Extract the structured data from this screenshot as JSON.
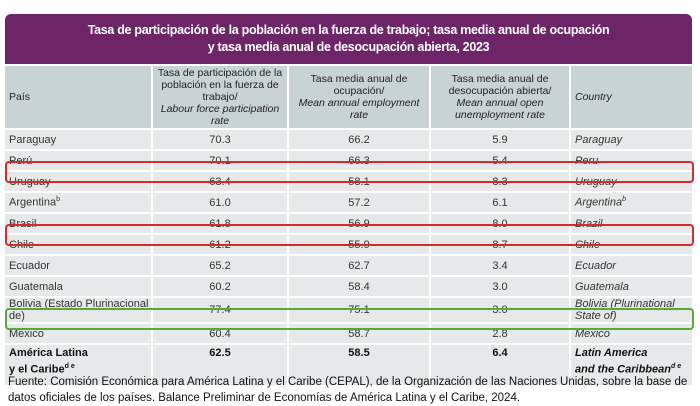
{
  "title": {
    "line1": "Tasa de participación de la población en la fuerza de trabajo; tasa media anual de ocupación",
    "line2": "y tasa media anual de desocupación abierta, 2023"
  },
  "headers": {
    "pais": "País",
    "col1_es": "Tasa de participación de la población en la fuerza de trabajo/",
    "col1_en": "Labour force participation rate",
    "col2_es": "Tasa media anual de ocupación/",
    "col2_en": "Mean annual employment rate",
    "col3_es": "Tasa media anual de desocupación abierta/",
    "col3_en": "Mean annual open unemployment rate",
    "country": "Country"
  },
  "rows": [
    {
      "pais": "Paraguay",
      "sup": "",
      "lfpr": "70.3",
      "emp": "66.2",
      "unemp": "5.9",
      "country": "Paraguay"
    },
    {
      "pais": "Perú",
      "sup": "",
      "lfpr": "70.1",
      "emp": "66.3",
      "unemp": "5.4",
      "country": "Peru"
    },
    {
      "pais": "Uruguay",
      "sup": "",
      "lfpr": "63.4",
      "emp": "58.1",
      "unemp": "8.3",
      "country": "Uruguay"
    },
    {
      "pais": "Argentina",
      "sup": "b",
      "lfpr": "61.0",
      "emp": "57.2",
      "unemp": "6.1",
      "country": "Argentina"
    },
    {
      "pais": "Brasil",
      "sup": "",
      "lfpr": "61.8",
      "emp": "56.9",
      "unemp": "8.0",
      "country": "Brazil"
    },
    {
      "pais": "Chile",
      "sup": "",
      "lfpr": "61.2",
      "emp": "55.9",
      "unemp": "8.7",
      "country": "Chile"
    },
    {
      "pais": "Ecuador",
      "sup": "",
      "lfpr": "65.2",
      "emp": "62.7",
      "unemp": "3.4",
      "country": "Ecuador"
    },
    {
      "pais": "Guatemala",
      "sup": "",
      "lfpr": "60.2",
      "emp": "58.4",
      "unemp": "3.0",
      "country": "Guatemala"
    },
    {
      "pais": "Bolivia (Estado Plurinacional de)",
      "sup": "",
      "lfpr": "77.4",
      "emp": "75.1",
      "unemp": "3.0",
      "country": "Bolivia (Plurinational State of)"
    },
    {
      "pais": "México",
      "sup": "",
      "lfpr": "60.4",
      "emp": "58.7",
      "unemp": "2.8",
      "country": "Mexico"
    }
  ],
  "total": {
    "pais1": "América Latina",
    "pais2": "y el Caribe",
    "sup": "d e",
    "lfpr": "62.5",
    "emp": "58.5",
    "unemp": "6.4",
    "country1": "Latin America",
    "country2": "and the Caribbean"
  },
  "highlight_colors": {
    "red": "#d62a2a",
    "green": "#5aa83a"
  },
  "footer": {
    "line1": "Fuente: Comisión Económica para América Latina y el Caribe (CEPAL), de la Organización de las Naciones Unidas, sobre la base de",
    "line2": "datos oficiales de los países. Balance Preliminar de Economías de América Latina y el Caribe, 2024."
  }
}
